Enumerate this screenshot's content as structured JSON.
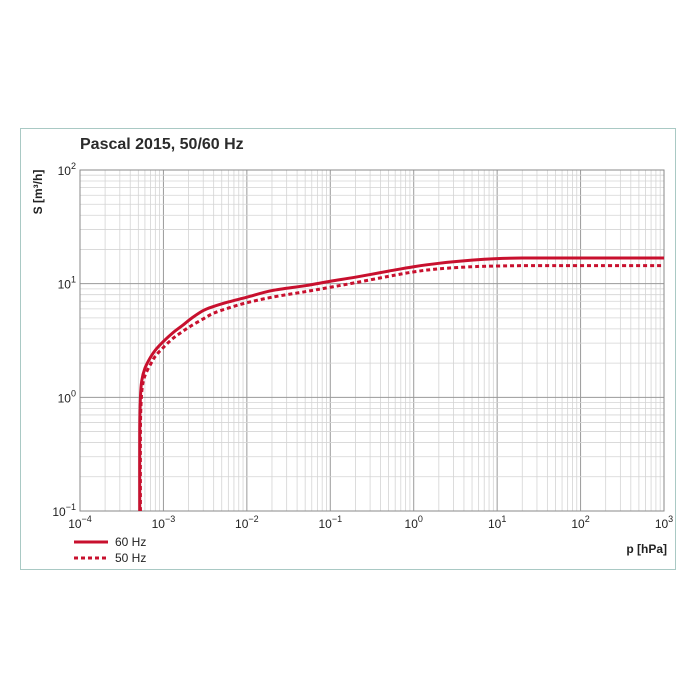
{
  "chart_data": {
    "type": "line",
    "title": "Pascal 2015, 50/60 Hz",
    "xlabel": "p [hPa]",
    "ylabel": "S [m³/h]",
    "x_scale": "log",
    "y_scale": "log",
    "xlim": [
      0.0001,
      1000
    ],
    "ylim": [
      0.1,
      100
    ],
    "x_ticks": [
      {
        "base": "10",
        "exp": "-4"
      },
      {
        "base": "10",
        "exp": "-3"
      },
      {
        "base": "10",
        "exp": "-2"
      },
      {
        "base": "10",
        "exp": "-1"
      },
      {
        "base": "10",
        "exp": "0"
      },
      {
        "base": "10",
        "exp": "1"
      },
      {
        "base": "10",
        "exp": "2"
      },
      {
        "base": "10",
        "exp": "3"
      }
    ],
    "y_ticks": [
      {
        "base": "10",
        "exp": "-1"
      },
      {
        "base": "10",
        "exp": "0"
      },
      {
        "base": "10",
        "exp": "1"
      },
      {
        "base": "10",
        "exp": "2"
      }
    ],
    "grid": true,
    "legend_position": "bottom-left",
    "series": [
      {
        "name": "60 Hz",
        "style": "solid",
        "color": "#c8102e",
        "x": [
          0.00052,
          0.00052,
          0.00053,
          0.00055,
          0.0006,
          0.0007,
          0.0008,
          0.001,
          0.0013,
          0.0017,
          0.0022,
          0.003,
          0.004,
          0.006,
          0.01,
          0.02,
          0.05,
          0.1,
          0.2,
          0.5,
          1,
          2,
          5,
          10,
          20,
          50,
          100,
          1000
        ],
        "y": [
          0.1,
          0.5,
          1.0,
          1.4,
          1.8,
          2.25,
          2.6,
          3.1,
          3.7,
          4.3,
          5.0,
          5.8,
          6.3,
          6.9,
          7.6,
          8.7,
          9.6,
          10.5,
          11.4,
          12.9,
          14.1,
          15.1,
          16.1,
          16.6,
          16.8,
          16.8,
          16.8,
          16.8
        ]
      },
      {
        "name": "50 Hz",
        "style": "dashed",
        "color": "#c8102e",
        "x": [
          0.00053,
          0.00053,
          0.00054,
          0.00056,
          0.0006,
          0.0007,
          0.0008,
          0.001,
          0.0013,
          0.0017,
          0.0022,
          0.003,
          0.004,
          0.006,
          0.01,
          0.02,
          0.05,
          0.1,
          0.2,
          0.5,
          1,
          2,
          5,
          10,
          20,
          50,
          100,
          1000
        ],
        "y": [
          0.1,
          0.5,
          0.9,
          1.25,
          1.55,
          1.95,
          2.3,
          2.75,
          3.3,
          3.8,
          4.3,
          4.9,
          5.5,
          6.1,
          6.8,
          7.6,
          8.5,
          9.3,
          10.2,
          11.6,
          12.7,
          13.5,
          14.1,
          14.3,
          14.4,
          14.4,
          14.4,
          14.4
        ]
      }
    ]
  }
}
